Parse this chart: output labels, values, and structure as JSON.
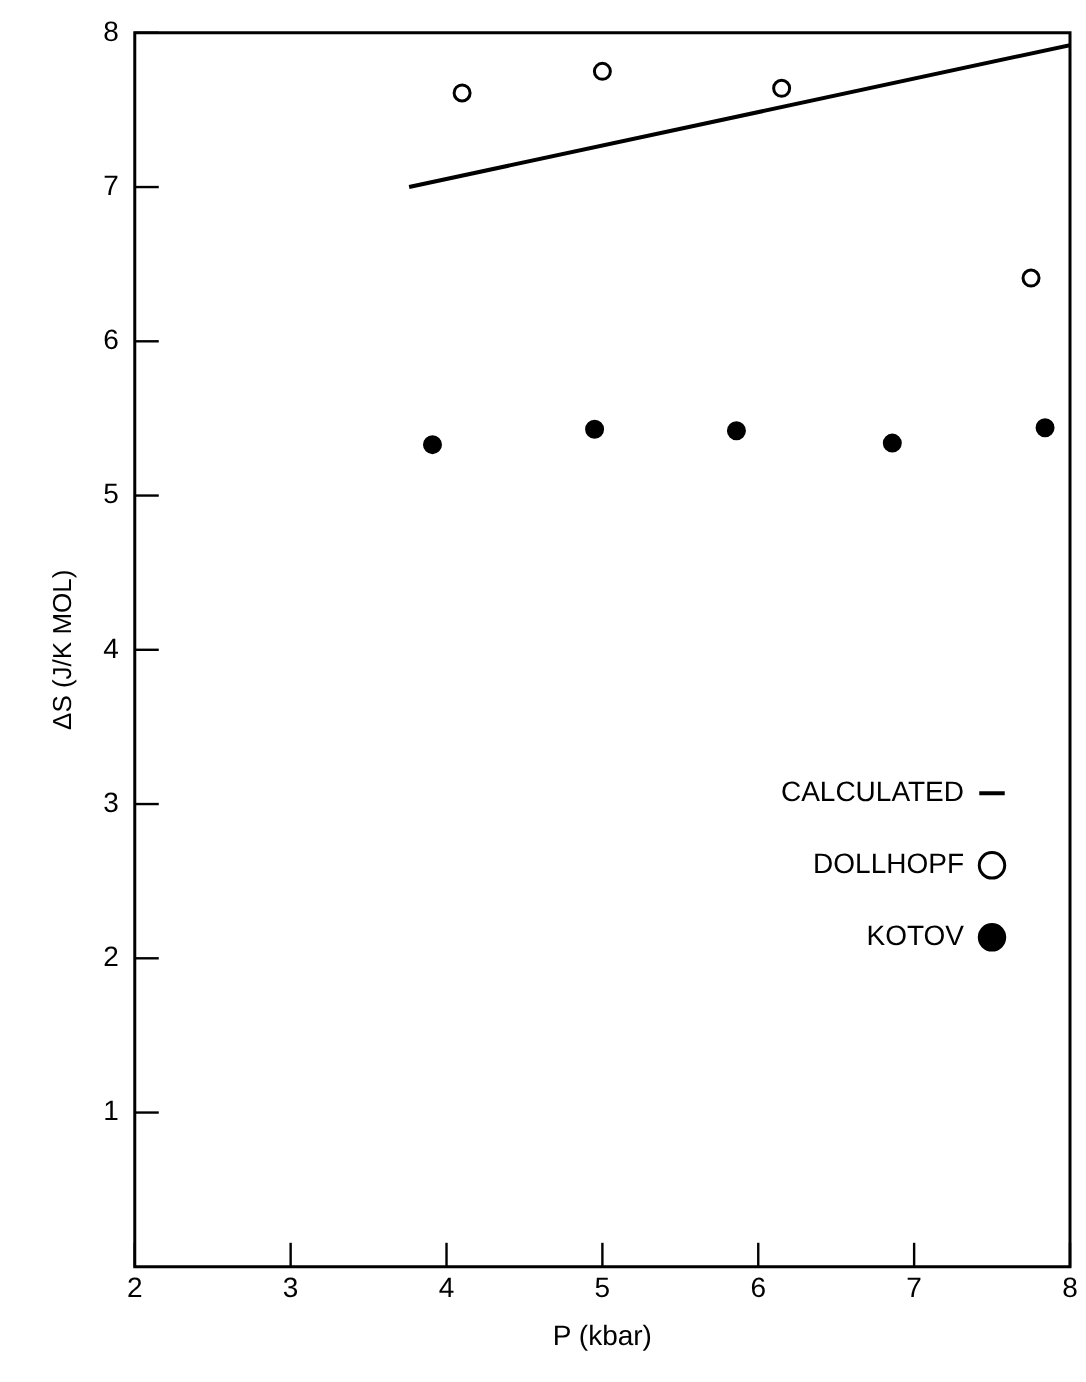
{
  "chart_data": {
    "type": "scatter",
    "xlabel": "P (kbar)",
    "ylabel": "ΔS (J/K MOL)",
    "xlim": [
      2,
      8
    ],
    "ylim": [
      0,
      8
    ],
    "xticks": [
      2,
      3,
      4,
      5,
      6,
      7,
      8
    ],
    "yticks": [
      1,
      2,
      3,
      4,
      5,
      6,
      7,
      8
    ],
    "grid": false,
    "legend": "bottom right",
    "series": [
      {
        "name": "CALCULATED",
        "type": "line",
        "color": "#000000",
        "marker": "none",
        "x": [
          3.76,
          8.0
        ],
        "values": [
          7.0,
          7.92
        ]
      },
      {
        "name": "DOLLHOPF",
        "color": "#ffffff",
        "marker": "circle",
        "x": [
          4.1,
          5.0,
          6.15,
          7.75
        ],
        "values": [
          7.61,
          7.75,
          7.64,
          6.41
        ]
      },
      {
        "name": "KOTOV",
        "color": "#000000",
        "marker": "circle",
        "x": [
          3.91,
          4.95,
          5.86,
          6.86,
          7.84
        ],
        "values": [
          5.33,
          5.43,
          5.42,
          5.34,
          5.44
        ]
      }
    ]
  }
}
